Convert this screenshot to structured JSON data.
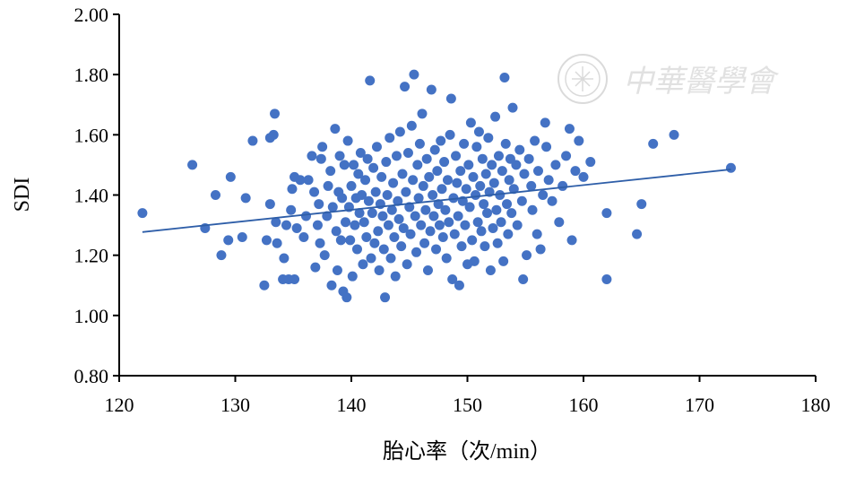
{
  "chart_data": {
    "type": "scatter",
    "title": "",
    "xlabel": "胎心率（次/min）",
    "ylabel": "SDI",
    "xlim": [
      120,
      180
    ],
    "ylim": [
      0.8,
      2.0
    ],
    "x_ticks": [
      "120",
      "130",
      "140",
      "150",
      "160",
      "170",
      "180"
    ],
    "y_ticks": [
      "0.80",
      "1.00",
      "1.20",
      "1.40",
      "1.60",
      "1.80",
      "2.00"
    ],
    "grid": false,
    "point_color": "#4472C4",
    "line_color": "#2E5EA8",
    "trendline": {
      "x": [
        122,
        172.7
      ],
      "y": [
        1.277,
        1.485
      ]
    },
    "points": [
      [
        122.0,
        1.34
      ],
      [
        126.3,
        1.5
      ],
      [
        127.4,
        1.29
      ],
      [
        128.3,
        1.4
      ],
      [
        128.8,
        1.2
      ],
      [
        129.4,
        1.25
      ],
      [
        129.6,
        1.46
      ],
      [
        130.6,
        1.26
      ],
      [
        130.9,
        1.39
      ],
      [
        131.5,
        1.58
      ],
      [
        132.5,
        1.1
      ],
      [
        132.7,
        1.25
      ],
      [
        133.0,
        1.37
      ],
      [
        133.0,
        1.59
      ],
      [
        133.3,
        1.6
      ],
      [
        133.4,
        1.67
      ],
      [
        133.5,
        1.31
      ],
      [
        133.6,
        1.24
      ],
      [
        134.1,
        1.12
      ],
      [
        134.2,
        1.19
      ],
      [
        134.4,
        1.3
      ],
      [
        134.6,
        1.12
      ],
      [
        134.8,
        1.35
      ],
      [
        134.9,
        1.42
      ],
      [
        135.1,
        1.46
      ],
      [
        135.1,
        1.12
      ],
      [
        135.3,
        1.29
      ],
      [
        135.6,
        1.45
      ],
      [
        135.9,
        1.26
      ],
      [
        136.1,
        1.33
      ],
      [
        136.3,
        1.45
      ],
      [
        136.6,
        1.53
      ],
      [
        136.8,
        1.41
      ],
      [
        136.9,
        1.16
      ],
      [
        137.1,
        1.3
      ],
      [
        137.2,
        1.37
      ],
      [
        137.3,
        1.24
      ],
      [
        137.4,
        1.52
      ],
      [
        137.5,
        1.56
      ],
      [
        137.7,
        1.2
      ],
      [
        137.9,
        1.33
      ],
      [
        138.0,
        1.43
      ],
      [
        138.2,
        1.48
      ],
      [
        138.3,
        1.1
      ],
      [
        138.4,
        1.36
      ],
      [
        138.6,
        1.62
      ],
      [
        138.7,
        1.28
      ],
      [
        138.8,
        1.15
      ],
      [
        138.9,
        1.41
      ],
      [
        139.0,
        1.53
      ],
      [
        139.1,
        1.25
      ],
      [
        139.2,
        1.39
      ],
      [
        139.3,
        1.08
      ],
      [
        139.4,
        1.5
      ],
      [
        139.5,
        1.31
      ],
      [
        139.6,
        1.06
      ],
      [
        139.7,
        1.58
      ],
      [
        139.8,
        1.36
      ],
      [
        139.9,
        1.25
      ],
      [
        140.0,
        1.43
      ],
      [
        140.1,
        1.13
      ],
      [
        140.2,
        1.5
      ],
      [
        140.3,
        1.3
      ],
      [
        140.4,
        1.39
      ],
      [
        140.5,
        1.22
      ],
      [
        140.6,
        1.47
      ],
      [
        140.7,
        1.34
      ],
      [
        140.8,
        1.54
      ],
      [
        140.9,
        1.4
      ],
      [
        141.0,
        1.17
      ],
      [
        141.1,
        1.31
      ],
      [
        141.2,
        1.45
      ],
      [
        141.3,
        1.26
      ],
      [
        141.4,
        1.52
      ],
      [
        141.5,
        1.38
      ],
      [
        141.6,
        1.78
      ],
      [
        141.7,
        1.19
      ],
      [
        141.8,
        1.34
      ],
      [
        141.9,
        1.49
      ],
      [
        142.0,
        1.24
      ],
      [
        142.1,
        1.41
      ],
      [
        142.2,
        1.56
      ],
      [
        142.3,
        1.28
      ],
      [
        142.4,
        1.15
      ],
      [
        142.5,
        1.37
      ],
      [
        142.6,
        1.46
      ],
      [
        142.7,
        1.33
      ],
      [
        142.8,
        1.22
      ],
      [
        142.9,
        1.06
      ],
      [
        143.0,
        1.51
      ],
      [
        143.1,
        1.4
      ],
      [
        143.2,
        1.3
      ],
      [
        143.3,
        1.59
      ],
      [
        143.4,
        1.19
      ],
      [
        143.5,
        1.35
      ],
      [
        143.6,
        1.44
      ],
      [
        143.7,
        1.26
      ],
      [
        143.8,
        1.13
      ],
      [
        143.9,
        1.53
      ],
      [
        144.0,
        1.38
      ],
      [
        144.1,
        1.32
      ],
      [
        144.2,
        1.61
      ],
      [
        144.3,
        1.23
      ],
      [
        144.4,
        1.47
      ],
      [
        144.5,
        1.29
      ],
      [
        144.6,
        1.76
      ],
      [
        144.7,
        1.41
      ],
      [
        144.8,
        1.17
      ],
      [
        144.9,
        1.54
      ],
      [
        145.0,
        1.36
      ],
      [
        145.1,
        1.27
      ],
      [
        145.2,
        1.63
      ],
      [
        145.3,
        1.45
      ],
      [
        145.4,
        1.8
      ],
      [
        145.5,
        1.33
      ],
      [
        145.6,
        1.21
      ],
      [
        145.7,
        1.5
      ],
      [
        145.8,
        1.39
      ],
      [
        145.9,
        1.57
      ],
      [
        146.0,
        1.3
      ],
      [
        146.1,
        1.67
      ],
      [
        146.2,
        1.43
      ],
      [
        146.3,
        1.24
      ],
      [
        146.4,
        1.35
      ],
      [
        146.5,
        1.52
      ],
      [
        146.6,
        1.15
      ],
      [
        146.7,
        1.46
      ],
      [
        146.8,
        1.28
      ],
      [
        146.9,
        1.75
      ],
      [
        147.0,
        1.4
      ],
      [
        147.1,
        1.33
      ],
      [
        147.2,
        1.55
      ],
      [
        147.3,
        1.22
      ],
      [
        147.4,
        1.48
      ],
      [
        147.5,
        1.37
      ],
      [
        147.6,
        1.3
      ],
      [
        147.7,
        1.58
      ],
      [
        147.8,
        1.42
      ],
      [
        147.9,
        1.26
      ],
      [
        148.0,
        1.51
      ],
      [
        148.1,
        1.35
      ],
      [
        148.2,
        1.19
      ],
      [
        148.3,
        1.45
      ],
      [
        148.4,
        1.31
      ],
      [
        148.5,
        1.6
      ],
      [
        148.6,
        1.72
      ],
      [
        148.7,
        1.12
      ],
      [
        148.8,
        1.39
      ],
      [
        148.9,
        1.27
      ],
      [
        149.0,
        1.53
      ],
      [
        149.1,
        1.44
      ],
      [
        149.2,
        1.33
      ],
      [
        149.3,
        1.1
      ],
      [
        149.4,
        1.48
      ],
      [
        149.5,
        1.23
      ],
      [
        149.6,
        1.38
      ],
      [
        149.7,
        1.57
      ],
      [
        149.8,
        1.3
      ],
      [
        149.9,
        1.42
      ],
      [
        150.0,
        1.17
      ],
      [
        150.1,
        1.5
      ],
      [
        150.2,
        1.36
      ],
      [
        150.3,
        1.64
      ],
      [
        150.4,
        1.25
      ],
      [
        150.5,
        1.46
      ],
      [
        150.6,
        1.18
      ],
      [
        150.7,
        1.4
      ],
      [
        150.8,
        1.56
      ],
      [
        150.9,
        1.31
      ],
      [
        151.0,
        1.61
      ],
      [
        151.1,
        1.43
      ],
      [
        151.2,
        1.28
      ],
      [
        151.3,
        1.52
      ],
      [
        151.4,
        1.37
      ],
      [
        151.5,
        1.23
      ],
      [
        151.6,
        1.47
      ],
      [
        151.7,
        1.34
      ],
      [
        151.8,
        1.59
      ],
      [
        151.9,
        1.41
      ],
      [
        152.0,
        1.15
      ],
      [
        152.1,
        1.5
      ],
      [
        152.2,
        1.29
      ],
      [
        152.3,
        1.44
      ],
      [
        152.4,
        1.66
      ],
      [
        152.5,
        1.35
      ],
      [
        152.6,
        1.24
      ],
      [
        152.7,
        1.53
      ],
      [
        152.8,
        1.4
      ],
      [
        152.9,
        1.31
      ],
      [
        153.0,
        1.48
      ],
      [
        153.1,
        1.18
      ],
      [
        153.2,
        1.79
      ],
      [
        153.3,
        1.57
      ],
      [
        153.4,
        1.37
      ],
      [
        153.5,
        1.27
      ],
      [
        153.6,
        1.45
      ],
      [
        153.7,
        1.52
      ],
      [
        153.8,
        1.34
      ],
      [
        153.9,
        1.69
      ],
      [
        154.0,
        1.42
      ],
      [
        154.2,
        1.5
      ],
      [
        154.3,
        1.3
      ],
      [
        154.5,
        1.55
      ],
      [
        154.7,
        1.38
      ],
      [
        154.8,
        1.12
      ],
      [
        154.9,
        1.47
      ],
      [
        155.1,
        1.2
      ],
      [
        155.3,
        1.52
      ],
      [
        155.5,
        1.43
      ],
      [
        155.6,
        1.35
      ],
      [
        155.8,
        1.58
      ],
      [
        156.0,
        1.27
      ],
      [
        156.1,
        1.48
      ],
      [
        156.3,
        1.22
      ],
      [
        156.5,
        1.4
      ],
      [
        156.7,
        1.64
      ],
      [
        156.8,
        1.56
      ],
      [
        157.0,
        1.45
      ],
      [
        157.3,
        1.38
      ],
      [
        157.6,
        1.5
      ],
      [
        157.9,
        1.31
      ],
      [
        158.2,
        1.43
      ],
      [
        158.5,
        1.53
      ],
      [
        158.8,
        1.62
      ],
      [
        159.0,
        1.25
      ],
      [
        159.3,
        1.48
      ],
      [
        159.6,
        1.58
      ],
      [
        160.0,
        1.46
      ],
      [
        160.6,
        1.51
      ],
      [
        162.0,
        1.34
      ],
      [
        162.0,
        1.12
      ],
      [
        164.6,
        1.27
      ],
      [
        165.0,
        1.37
      ],
      [
        166.0,
        1.57
      ],
      [
        167.8,
        1.6
      ],
      [
        172.7,
        1.49
      ]
    ]
  },
  "watermark": {
    "text": "中華醫學會"
  }
}
